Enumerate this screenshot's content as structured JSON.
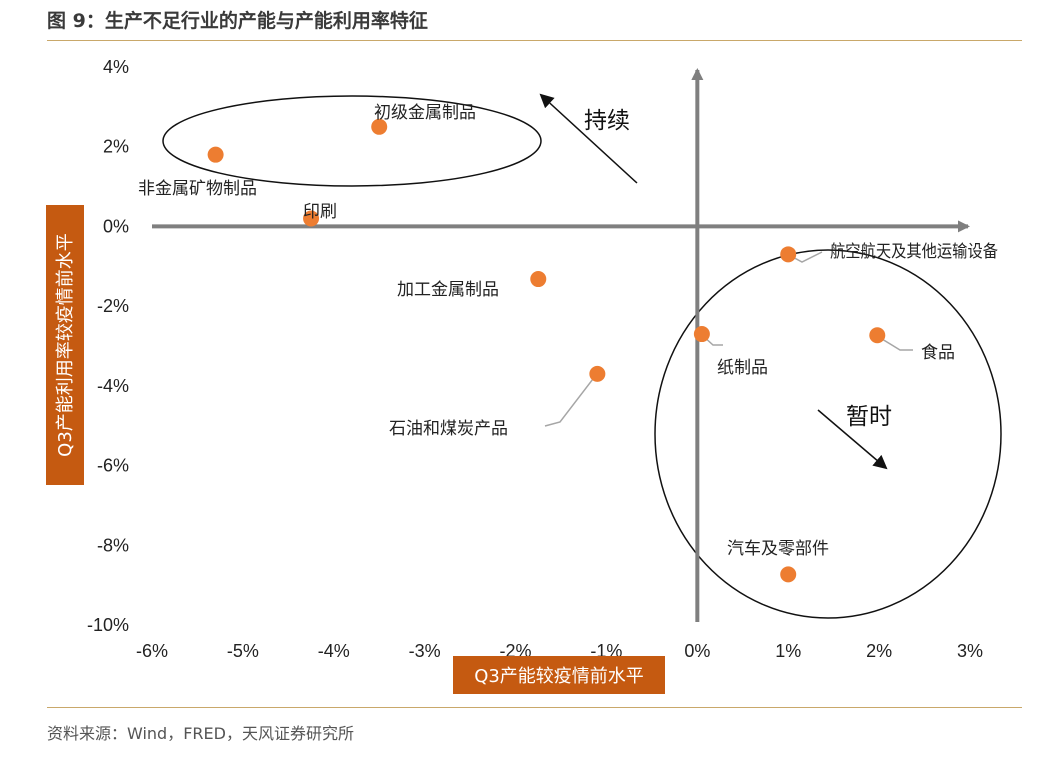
{
  "figure": {
    "title": "图 9：生产不足行业的产能与产能利用率特征",
    "source": "资料来源：Wind，FRED，天风证券研究所"
  },
  "colors": {
    "point": "#ed7d31",
    "axis_title_bg": "#c55a11",
    "axis": "#7f7f7f",
    "rule": "#c9a86a",
    "leader": "#a6a6a6"
  },
  "chart_data": {
    "type": "scatter",
    "title": "",
    "xlabel": "Q3产能较疫情前水平",
    "ylabel": "Q3产能利用率较疫情前水平",
    "xlim": [
      -0.06,
      0.03
    ],
    "ylim": [
      -0.1,
      0.04
    ],
    "x_ticks": [
      "-6%",
      "-5%",
      "-4%",
      "-3%",
      "-2%",
      "-1%",
      "0%",
      "1%",
      "2%",
      "3%"
    ],
    "y_ticks": [
      "4%",
      "2%",
      "0%",
      "-2%",
      "-4%",
      "-6%",
      "-8%",
      "-10%"
    ],
    "points": [
      {
        "label": "非金属矿物制品",
        "x": -0.053,
        "y": 0.018
      },
      {
        "label": "初级金属制品",
        "x": -0.035,
        "y": 0.025
      },
      {
        "label": "印刷",
        "x": -0.0425,
        "y": 0.002
      },
      {
        "label": "加工金属制品",
        "x": -0.0175,
        "y": -0.0132
      },
      {
        "label": "石油和煤炭产品",
        "x": -0.011,
        "y": -0.037
      },
      {
        "label": "纸制品",
        "x": 0.0005,
        "y": -0.027
      },
      {
        "label": "航空航天及其他运输设备",
        "x": 0.01,
        "y": -0.007
      },
      {
        "label": "食品",
        "x": 0.0198,
        "y": -0.0273
      },
      {
        "label": "汽车及零部件",
        "x": 0.01,
        "y": -0.0873
      }
    ],
    "annotations": [
      "持续",
      "暂时"
    ]
  }
}
